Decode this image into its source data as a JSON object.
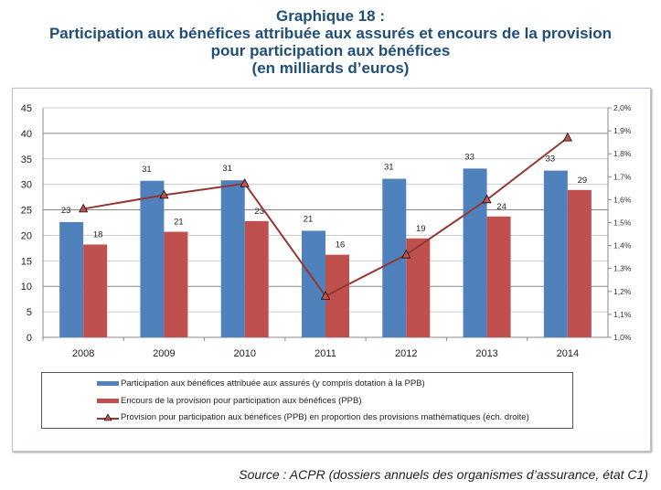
{
  "title": {
    "line1": "Graphique 18 :",
    "line2": "Participation aux bénéfices attribuée aux assurés et encours de la provision",
    "line3": "pour participation aux bénéfices",
    "line4": "(en milliards d’euros)"
  },
  "source": "Source : ACPR (dossiers annuels des organismes d’assurance, état C1)",
  "chart_data": {
    "type": "bar",
    "categories": [
      "2008",
      "2009",
      "2010",
      "2011",
      "2012",
      "2013",
      "2014"
    ],
    "ylim": [
      0,
      45
    ],
    "yticks": [
      "0",
      "5",
      "10",
      "15",
      "20",
      "25",
      "30",
      "35",
      "40",
      "45"
    ],
    "y2lim": [
      1.0,
      2.0
    ],
    "y2ticks": [
      "1,0%",
      "1,1%",
      "1,2%",
      "1,3%",
      "1,4%",
      "1,5%",
      "1,6%",
      "1,7%",
      "1,8%",
      "1,9%",
      "2,0%"
    ],
    "grid": true,
    "legend_position": "bottom",
    "series": [
      {
        "name": "Participation aux bénéfices attribuée aux assurés (y compris dotation à la PPB)",
        "type": "bar",
        "color": "#4f81bd",
        "values": [
          22.6,
          30.7,
          30.8,
          20.9,
          31.1,
          33.1,
          32.7
        ],
        "labels": [
          "23",
          "31",
          "31",
          "21",
          "31",
          "33",
          "33"
        ]
      },
      {
        "name": "Encours de la provision pour participation aux bénéfices (PPB)",
        "type": "bar",
        "color": "#c0504d",
        "values": [
          18.2,
          20.7,
          22.8,
          16.2,
          19.4,
          23.7,
          28.9
        ],
        "labels": [
          "18",
          "21",
          "23",
          "16",
          "19",
          "24",
          "29"
        ]
      },
      {
        "name": "Provision pour participation aux bénéfices (PPB) en proportion des provisions mathématiques (éch. droite)",
        "type": "line",
        "axis": "right",
        "color": "#943634",
        "values": [
          1.56,
          1.62,
          1.67,
          1.18,
          1.36,
          1.6,
          1.87
        ]
      }
    ]
  }
}
